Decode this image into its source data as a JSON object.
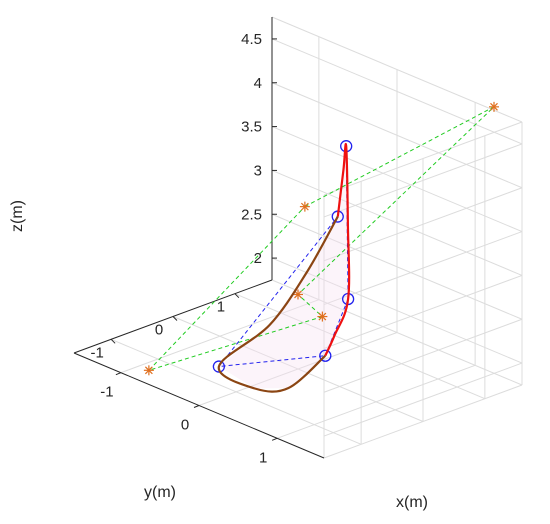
{
  "chart_data": {
    "type": "line",
    "projection": "3d",
    "grid": true,
    "xlabel": "x(m)",
    "ylabel": "y(m)",
    "zlabel": "z(m)",
    "x_ticks": [
      "-1",
      "0",
      "1"
    ],
    "y_ticks": [
      "-1",
      "0",
      "1"
    ],
    "z_ticks": [
      "2",
      "2.5",
      "3",
      "3.5",
      "4",
      "4.5"
    ],
    "xlim": [
      -1.6,
      1.6
    ],
    "ylim": [
      -1.6,
      1.6
    ],
    "zlim": [
      1.75,
      4.75
    ],
    "series": [
      {
        "kind": "outer-control-polygon",
        "style": "dashed",
        "marker": "star",
        "color": "#22cc22",
        "marker_color": "#e07020",
        "closed": true,
        "points": [
          {
            "x": -1.1,
            "y": 1.5,
            "z": 2.8
          },
          {
            "x": 1.4,
            "y": 1.4,
            "z": 4.9
          },
          {
            "x": 0.0,
            "y": 0.0,
            "z": 2.6
          },
          {
            "x": 1.5,
            "y": -1.5,
            "z": 3.3
          },
          {
            "x": -0.8,
            "y": -1.4,
            "z": 1.8
          }
        ]
      },
      {
        "kind": "inner-polygon",
        "style": "dashed",
        "marker": "circle",
        "color": "#2222ee",
        "closed": true,
        "points": [
          {
            "x": -0.6,
            "y": 1.4,
            "z": 2.9
          },
          {
            "x": 0.3,
            "y": 0.4,
            "z": 4.3
          },
          {
            "x": 0.8,
            "y": -0.2,
            "z": 2.9
          },
          {
            "x": 1.3,
            "y": -1.2,
            "z": 2.7
          },
          {
            "x": -0.3,
            "y": -0.9,
            "z": 1.9
          }
        ]
      },
      {
        "kind": "upper-curve",
        "style": "solid",
        "color": "#ee1111",
        "closed": false,
        "points": [
          {
            "x": -0.6,
            "y": 1.4,
            "z": 2.9
          },
          {
            "x": -0.25,
            "y": 1.05,
            "z": 3.65
          },
          {
            "x": 0.3,
            "y": 0.4,
            "z": 4.3
          },
          {
            "x": 0.52,
            "y": 0.15,
            "z": 3.55
          },
          {
            "x": 0.8,
            "y": -0.2,
            "z": 2.9
          },
          {
            "x": 1.1,
            "y": -0.8,
            "z": 2.75
          },
          {
            "x": 1.3,
            "y": -1.2,
            "z": 2.7
          }
        ]
      },
      {
        "kind": "lower-curve",
        "style": "solid",
        "color": "#8b4513",
        "closed": false,
        "points": [
          {
            "x": 1.3,
            "y": -1.2,
            "z": 2.7
          },
          {
            "x": 0.75,
            "y": -1.1,
            "z": 2.1
          },
          {
            "x": 0.2,
            "y": -0.95,
            "z": 1.85
          },
          {
            "x": -0.3,
            "y": -0.9,
            "z": 1.9
          },
          {
            "x": -0.6,
            "y": 0.3,
            "z": 1.95
          },
          {
            "x": -0.75,
            "y": 1.1,
            "z": 2.3
          },
          {
            "x": -0.6,
            "y": 1.4,
            "z": 2.9
          }
        ]
      }
    ]
  }
}
